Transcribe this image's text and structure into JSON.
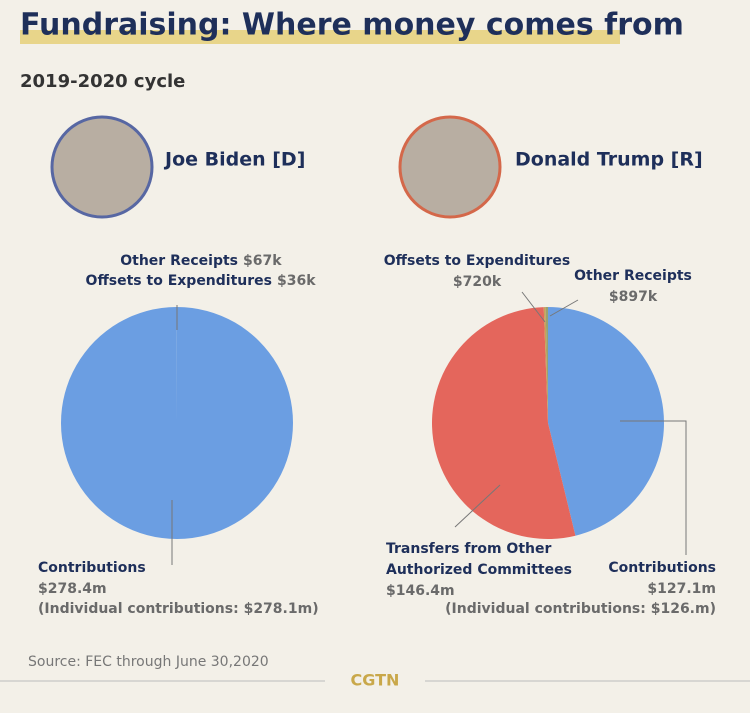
{
  "title": "Fundraising: Where money comes from",
  "subtitle": "2019-2020 cycle",
  "source": "Source: FEC through June 30,2020",
  "logo": "CGTN",
  "chart_data": [
    {
      "type": "pie",
      "title": "Joe Biden [D]",
      "categories": [
        "Contributions",
        "Other Receipts",
        "Offsets to Expenditures"
      ],
      "values": [
        278.4,
        0.067,
        0.036
      ],
      "value_labels": [
        "$278.4m",
        "$67k",
        "$36k"
      ],
      "colors": [
        "#6b9ee2",
        "#6b9ee2",
        "#6b9ee2"
      ],
      "annotation": "(Individual contributions: $278.1m)"
    },
    {
      "type": "pie",
      "title": "Donald Trump [R]",
      "categories": [
        "Contributions",
        "Transfers from Other Authorized Committees",
        "Offsets to Expenditures",
        "Other Receipts"
      ],
      "values": [
        127.1,
        146.4,
        0.72,
        0.897
      ],
      "value_labels": [
        "$127.1m",
        "$146.4m",
        "$720k",
        "$897k"
      ],
      "colors": [
        "#6b9ee2",
        "#e4665c",
        "#c9a05a",
        "#9aa36e"
      ],
      "annotation": "(Individual contributions: $126.m)"
    }
  ]
}
